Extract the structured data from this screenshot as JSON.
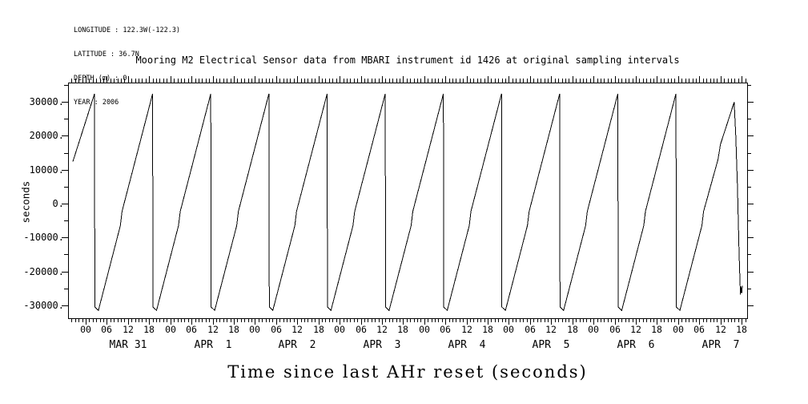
{
  "header": {
    "lines": [
      "LONGITUDE : 122.3W(-122.3)",
      "LATITUDE : 36.7N",
      "DEPTH (m) : 0",
      "YEAR : 2006"
    ]
  },
  "chart_data": {
    "type": "line",
    "title": "Mooring M2 Electrical Sensor data from MBARI instrument id 1426 at original sampling intervals",
    "xlabel": "Time since last AHr reset (seconds)",
    "ylabel": "seconds",
    "line_color": "#000000",
    "background_color": "#ffffff",
    "x_unit": "days since 2006-03-31 00:00",
    "x_range_days": [
      -0.2081,
      7.8146
    ],
    "y_range": [
      -33810,
      35700
    ],
    "y_minor_step": 5000,
    "y_major_ticks": [
      {
        "value": 30000,
        "label": "30000."
      },
      {
        "value": 20000,
        "label": "20000."
      },
      {
        "value": 10000,
        "label": "10000."
      },
      {
        "value": 0,
        "label": "0."
      },
      {
        "value": -10000,
        "label": "-10000."
      },
      {
        "value": -20000,
        "label": "-20000."
      },
      {
        "value": -30000,
        "label": "-30000."
      }
    ],
    "x_minor_step_hours": 1,
    "x_major_step_hours": 6,
    "x_hour_labels_cycle": [
      "00",
      "06",
      "12",
      "18"
    ],
    "x_day_labels": [
      "MAR 31",
      "APR  1",
      "APR  2",
      "APR  3",
      "APR  4",
      "APR  5",
      "APR  6",
      "APR  7"
    ],
    "sawtooth_summary": {
      "period_days": 0.687,
      "peak_seconds": 32400,
      "trough_seconds": -31500,
      "cycles": 12
    },
    "points_t_days_v_seconds": [
      [
        -0.151,
        12400
      ],
      [
        0.104,
        32400
      ],
      [
        0.108,
        -30500
      ],
      [
        0.15,
        -31500
      ],
      [
        0.41,
        -6500
      ],
      [
        0.43,
        -2300
      ],
      [
        0.791,
        32400
      ],
      [
        0.795,
        -30500
      ],
      [
        0.837,
        -31500
      ],
      [
        1.097,
        -6500
      ],
      [
        1.117,
        -2300
      ],
      [
        1.478,
        32400
      ],
      [
        1.482,
        -30500
      ],
      [
        1.524,
        -31500
      ],
      [
        1.784,
        -6500
      ],
      [
        1.804,
        -2300
      ],
      [
        2.165,
        32400
      ],
      [
        2.169,
        -30500
      ],
      [
        2.211,
        -31500
      ],
      [
        2.471,
        -6500
      ],
      [
        2.491,
        -2300
      ],
      [
        2.852,
        32400
      ],
      [
        2.856,
        -30500
      ],
      [
        2.898,
        -31500
      ],
      [
        3.158,
        -6500
      ],
      [
        3.178,
        -2300
      ],
      [
        3.539,
        32400
      ],
      [
        3.543,
        -30500
      ],
      [
        3.585,
        -31500
      ],
      [
        3.845,
        -6500
      ],
      [
        3.865,
        -2300
      ],
      [
        4.226,
        32400
      ],
      [
        4.23,
        -30500
      ],
      [
        4.272,
        -31500
      ],
      [
        4.532,
        -6500
      ],
      [
        4.552,
        -2300
      ],
      [
        4.913,
        32400
      ],
      [
        4.917,
        -30500
      ],
      [
        4.959,
        -31500
      ],
      [
        5.219,
        -6500
      ],
      [
        5.239,
        -2300
      ],
      [
        5.6,
        32400
      ],
      [
        5.604,
        -30500
      ],
      [
        5.646,
        -31500
      ],
      [
        5.906,
        -6500
      ],
      [
        5.926,
        -2300
      ],
      [
        6.287,
        32400
      ],
      [
        6.291,
        -30500
      ],
      [
        6.333,
        -31500
      ],
      [
        6.593,
        -6500
      ],
      [
        6.613,
        -2300
      ],
      [
        6.974,
        32400
      ],
      [
        6.978,
        -30500
      ],
      [
        7.02,
        -31500
      ],
      [
        7.28,
        -6500
      ],
      [
        7.3,
        -2300
      ],
      [
        7.47,
        13000
      ],
      [
        7.5,
        17500
      ],
      [
        7.661,
        29900
      ],
      [
        7.68,
        20000
      ],
      [
        7.7,
        5000
      ],
      [
        7.72,
        -15000
      ],
      [
        7.735,
        -26800
      ],
      [
        7.745,
        -24500
      ],
      [
        7.751,
        -26400
      ],
      [
        7.758,
        -24200
      ]
    ]
  }
}
